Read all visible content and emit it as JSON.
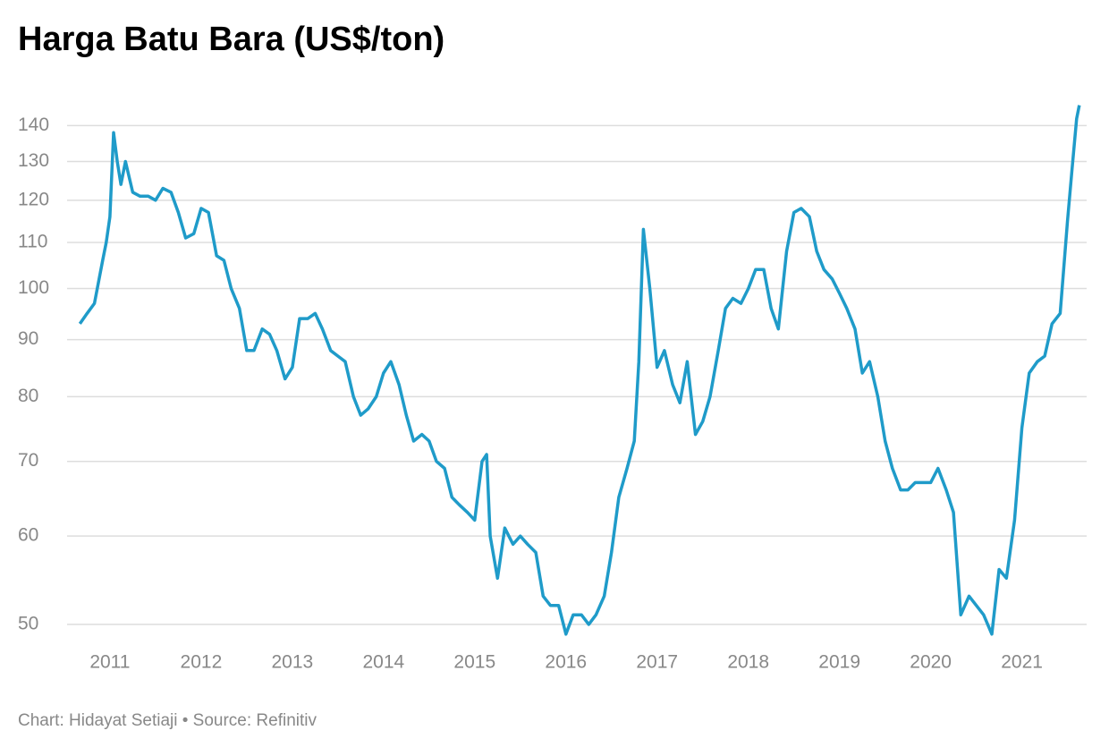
{
  "chart_data": {
    "type": "line",
    "title": "Harga Batu Bara (US$/ton)",
    "footer": "Chart: Hidayat Setiaji • Source: Refinitiv",
    "log_y": true,
    "grid": true,
    "xlim": [
      2010.53,
      2021.71
    ],
    "xticks": [
      2011,
      2012,
      2013,
      2014,
      2015,
      2016,
      2017,
      2018,
      2019,
      2020,
      2021
    ],
    "ylim": [
      48,
      150
    ],
    "yticks": [
      50,
      60,
      70,
      80,
      90,
      100,
      110,
      120,
      130,
      140
    ],
    "x": [
      2010.67,
      2010.75,
      2010.83,
      2010.92,
      2010.96,
      2011.0,
      2011.04,
      2011.08,
      2011.12,
      2011.17,
      2011.25,
      2011.33,
      2011.42,
      2011.5,
      2011.58,
      2011.67,
      2011.75,
      2011.83,
      2011.92,
      2012.0,
      2012.08,
      2012.17,
      2012.25,
      2012.33,
      2012.42,
      2012.5,
      2012.58,
      2012.67,
      2012.75,
      2012.83,
      2012.92,
      2013.0,
      2013.08,
      2013.17,
      2013.25,
      2013.33,
      2013.42,
      2013.5,
      2013.58,
      2013.67,
      2013.75,
      2013.83,
      2013.92,
      2014.0,
      2014.08,
      2014.17,
      2014.25,
      2014.33,
      2014.42,
      2014.5,
      2014.58,
      2014.67,
      2014.75,
      2014.83,
      2014.92,
      2015.0,
      2015.08,
      2015.13,
      2015.17,
      2015.25,
      2015.33,
      2015.42,
      2015.5,
      2015.58,
      2015.67,
      2015.75,
      2015.83,
      2015.92,
      2016.0,
      2016.08,
      2016.17,
      2016.25,
      2016.33,
      2016.42,
      2016.5,
      2016.58,
      2016.67,
      2016.75,
      2016.8,
      2016.85,
      2016.92,
      2017.0,
      2017.08,
      2017.17,
      2017.25,
      2017.33,
      2017.42,
      2017.5,
      2017.58,
      2017.67,
      2017.75,
      2017.83,
      2017.92,
      2018.0,
      2018.08,
      2018.17,
      2018.25,
      2018.33,
      2018.42,
      2018.5,
      2018.58,
      2018.67,
      2018.75,
      2018.83,
      2018.92,
      2019.0,
      2019.08,
      2019.17,
      2019.25,
      2019.33,
      2019.42,
      2019.5,
      2019.58,
      2019.67,
      2019.75,
      2019.83,
      2019.92,
      2020.0,
      2020.08,
      2020.17,
      2020.25,
      2020.33,
      2020.42,
      2020.5,
      2020.58,
      2020.67,
      2020.75,
      2020.83,
      2020.92,
      2021.0,
      2021.08,
      2021.17,
      2021.25,
      2021.33,
      2021.42,
      2021.5,
      2021.55,
      2021.6,
      2021.63
    ],
    "series": [
      {
        "name": "Harga",
        "color": "#1f9bc9",
        "values": [
          93,
          95,
          97,
          106,
          110,
          116,
          138,
          130,
          124,
          130,
          122,
          121,
          121,
          120,
          123,
          122,
          117,
          111,
          112,
          118,
          117,
          107,
          106,
          100,
          96,
          88,
          88,
          92,
          91,
          88,
          83,
          85,
          94,
          94,
          95,
          92,
          88,
          87,
          86,
          80,
          77,
          78,
          80,
          84,
          86,
          82,
          77,
          73,
          74,
          73,
          70,
          69,
          65,
          64,
          63,
          62,
          70,
          71,
          60,
          55,
          61,
          59,
          60,
          59,
          58,
          53,
          52,
          52,
          49,
          51,
          51,
          50,
          51,
          53,
          58,
          65,
          69,
          73,
          86,
          113,
          100,
          85,
          88,
          82,
          79,
          86,
          74,
          76,
          80,
          88,
          96,
          98,
          97,
          100,
          104,
          104,
          96,
          92,
          108,
          117,
          118,
          116,
          108,
          104,
          102,
          99,
          96,
          92,
          84,
          86,
          80,
          73,
          69,
          66,
          66,
          67,
          67,
          67,
          69,
          66,
          63,
          51,
          53,
          52,
          51,
          49,
          56,
          55,
          62,
          75,
          84,
          86,
          87,
          93,
          95,
          115,
          128,
          142,
          146
        ]
      }
    ]
  }
}
